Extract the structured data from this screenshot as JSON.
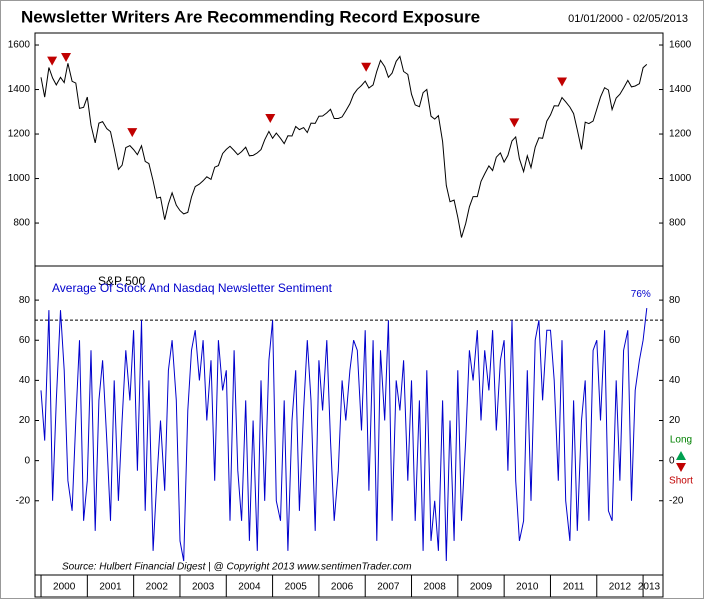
{
  "chart_data": [
    {
      "type": "line",
      "title": "Newsletter Writers Are Recommending Record Exposure",
      "subtitle": "01/01/2000 - 02/05/2013",
      "xlim": [
        1999.87,
        2013.43
      ],
      "ylim": [
        607,
        1654
      ],
      "yticks": [
        800,
        1000,
        1200,
        1400,
        1600
      ],
      "signals": [
        2000.24,
        2000.54,
        2001.97,
        2004.95,
        2007.02,
        2010.22,
        2011.25
      ],
      "signal_color": "#c00000",
      "x": [
        2000,
        2000.08,
        2000.17,
        2000.25,
        2000.33,
        2000.42,
        2000.5,
        2000.58,
        2000.67,
        2000.75,
        2000.83,
        2000.92,
        2001,
        2001.08,
        2001.17,
        2001.25,
        2001.33,
        2001.42,
        2001.5,
        2001.58,
        2001.67,
        2001.75,
        2001.83,
        2001.92,
        2002,
        2002.08,
        2002.17,
        2002.25,
        2002.33,
        2002.42,
        2002.5,
        2002.58,
        2002.67,
        2002.75,
        2002.83,
        2002.92,
        2003,
        2003.08,
        2003.17,
        2003.25,
        2003.33,
        2003.42,
        2003.5,
        2003.58,
        2003.67,
        2003.75,
        2003.83,
        2003.92,
        2004,
        2004.08,
        2004.17,
        2004.25,
        2004.33,
        2004.42,
        2004.5,
        2004.58,
        2004.67,
        2004.75,
        2004.83,
        2004.92,
        2005,
        2005.08,
        2005.17,
        2005.25,
        2005.33,
        2005.42,
        2005.5,
        2005.58,
        2005.67,
        2005.75,
        2005.83,
        2005.92,
        2006,
        2006.08,
        2006.17,
        2006.25,
        2006.33,
        2006.42,
        2006.5,
        2006.58,
        2006.67,
        2006.75,
        2006.83,
        2006.92,
        2007,
        2007.08,
        2007.17,
        2007.25,
        2007.33,
        2007.42,
        2007.5,
        2007.58,
        2007.67,
        2007.75,
        2007.83,
        2007.92,
        2008,
        2008.08,
        2008.17,
        2008.25,
        2008.33,
        2008.42,
        2008.5,
        2008.58,
        2008.67,
        2008.75,
        2008.83,
        2008.92,
        2009,
        2009.08,
        2009.17,
        2009.25,
        2009.33,
        2009.42,
        2009.5,
        2009.58,
        2009.67,
        2009.75,
        2009.83,
        2009.92,
        2010,
        2010.08,
        2010.17,
        2010.25,
        2010.33,
        2010.42,
        2010.5,
        2010.58,
        2010.67,
        2010.75,
        2010.83,
        2010.92,
        2011,
        2011.08,
        2011.17,
        2011.25,
        2011.33,
        2011.42,
        2011.5,
        2011.58,
        2011.67,
        2011.75,
        2011.83,
        2011.92,
        2012,
        2012.08,
        2012.17,
        2012.25,
        2012.33,
        2012.42,
        2012.5,
        2012.58,
        2012.67,
        2012.75,
        2012.83,
        2012.92,
        2013,
        2013.08
      ],
      "series": [
        {
          "name": "S&P 500",
          "color": "#000000",
          "values": [
            1455,
            1366,
            1499,
            1452,
            1421,
            1455,
            1431,
            1518,
            1437,
            1429,
            1315,
            1320,
            1366,
            1240,
            1160,
            1249,
            1256,
            1224,
            1211,
            1134,
            1041,
            1060,
            1139,
            1148,
            1130,
            1107,
            1147,
            1077,
            1067,
            990,
            912,
            916,
            815,
            886,
            936,
            880,
            856,
            841,
            848,
            917,
            964,
            975,
            990,
            1008,
            996,
            1051,
            1058,
            1112,
            1131,
            1145,
            1126,
            1107,
            1121,
            1141,
            1102,
            1104,
            1115,
            1130,
            1174,
            1212,
            1181,
            1204,
            1181,
            1157,
            1192,
            1191,
            1234,
            1220,
            1229,
            1207,
            1249,
            1248,
            1280,
            1281,
            1295,
            1311,
            1270,
            1270,
            1277,
            1304,
            1336,
            1378,
            1401,
            1418,
            1438,
            1407,
            1421,
            1482,
            1531,
            1503,
            1455,
            1474,
            1527,
            1549,
            1481,
            1468,
            1379,
            1331,
            1323,
            1386,
            1400,
            1280,
            1267,
            1283,
            1166,
            969,
            896,
            903,
            826,
            735,
            798,
            873,
            919,
            919,
            987,
            1021,
            1057,
            1036,
            1096,
            1115,
            1074,
            1104,
            1169,
            1187,
            1089,
            1031,
            1102,
            1049,
            1141,
            1183,
            1181,
            1258,
            1286,
            1327,
            1326,
            1364,
            1345,
            1321,
            1292,
            1219,
            1131,
            1253,
            1247,
            1258,
            1312,
            1366,
            1408,
            1398,
            1310,
            1362,
            1379,
            1407,
            1441,
            1412,
            1416,
            1426,
            1498,
            1513
          ]
        }
      ]
    },
    {
      "type": "line",
      "xlim": [
        1999.87,
        2013.43
      ],
      "ylim": [
        -57,
        97
      ],
      "yticks": [
        -20,
        0,
        20,
        40,
        60,
        80
      ],
      "xticks": [
        2000,
        2001,
        2002,
        2003,
        2004,
        2005,
        2006,
        2007,
        2008,
        2009,
        2010,
        2011,
        2012,
        2013
      ],
      "reference_line": 70,
      "signal_legend": [
        "Long",
        "Short"
      ],
      "x": [
        2000,
        2000.08,
        2000.17,
        2000.25,
        2000.33,
        2000.42,
        2000.5,
        2000.58,
        2000.67,
        2000.75,
        2000.83,
        2000.92,
        2001,
        2001.08,
        2001.17,
        2001.25,
        2001.33,
        2001.42,
        2001.5,
        2001.58,
        2001.67,
        2001.75,
        2001.83,
        2001.92,
        2002,
        2002.08,
        2002.17,
        2002.25,
        2002.33,
        2002.42,
        2002.5,
        2002.58,
        2002.67,
        2002.75,
        2002.83,
        2002.92,
        2003,
        2003.08,
        2003.17,
        2003.25,
        2003.33,
        2003.42,
        2003.5,
        2003.58,
        2003.67,
        2003.75,
        2003.83,
        2003.92,
        2004,
        2004.08,
        2004.17,
        2004.25,
        2004.33,
        2004.42,
        2004.5,
        2004.58,
        2004.67,
        2004.75,
        2004.83,
        2004.92,
        2005,
        2005.08,
        2005.17,
        2005.25,
        2005.33,
        2005.42,
        2005.5,
        2005.58,
        2005.67,
        2005.75,
        2005.83,
        2005.92,
        2006,
        2006.08,
        2006.17,
        2006.25,
        2006.33,
        2006.42,
        2006.5,
        2006.58,
        2006.67,
        2006.75,
        2006.83,
        2006.92,
        2007,
        2007.08,
        2007.17,
        2007.25,
        2007.33,
        2007.42,
        2007.5,
        2007.58,
        2007.67,
        2007.75,
        2007.83,
        2007.92,
        2008,
        2008.08,
        2008.17,
        2008.25,
        2008.33,
        2008.42,
        2008.5,
        2008.58,
        2008.67,
        2008.75,
        2008.83,
        2008.92,
        2009,
        2009.08,
        2009.17,
        2009.25,
        2009.33,
        2009.42,
        2009.5,
        2009.58,
        2009.67,
        2009.75,
        2009.83,
        2009.92,
        2010,
        2010.08,
        2010.17,
        2010.25,
        2010.33,
        2010.42,
        2010.5,
        2010.58,
        2010.67,
        2010.75,
        2010.83,
        2010.92,
        2011,
        2011.08,
        2011.17,
        2011.25,
        2011.33,
        2011.42,
        2011.5,
        2011.58,
        2011.67,
        2011.75,
        2011.83,
        2011.92,
        2012,
        2012.08,
        2012.17,
        2012.25,
        2012.33,
        2012.42,
        2012.5,
        2012.58,
        2012.67,
        2012.75,
        2012.83,
        2012.92,
        2013,
        2013.08
      ],
      "series": [
        {
          "name": "Average  Of  Stock  And  Nasdaq  Newsletter  Sentiment",
          "color": "#0000cc",
          "values": [
            35,
            10,
            75,
            -20,
            30,
            75,
            45,
            -10,
            -25,
            20,
            60,
            -30,
            -10,
            55,
            -35,
            30,
            50,
            10,
            -30,
            40,
            -20,
            20,
            55,
            30,
            65,
            -5,
            70,
            -25,
            40,
            -45,
            -10,
            20,
            -15,
            45,
            60,
            30,
            -40,
            -50,
            25,
            55,
            65,
            40,
            60,
            20,
            50,
            -10,
            60,
            35,
            45,
            -30,
            55,
            -5,
            -30,
            30,
            -40,
            20,
            -45,
            40,
            -20,
            50,
            70,
            -20,
            -30,
            30,
            -45,
            20,
            45,
            -25,
            25,
            60,
            30,
            -35,
            50,
            25,
            60,
            10,
            -30,
            -5,
            40,
            20,
            45,
            60,
            55,
            15,
            65,
            -15,
            60,
            -40,
            55,
            20,
            70,
            -30,
            40,
            25,
            50,
            -10,
            40,
            -30,
            30,
            -45,
            45,
            -40,
            -20,
            -45,
            30,
            -50,
            20,
            -40,
            45,
            -30,
            10,
            55,
            40,
            65,
            20,
            55,
            35,
            65,
            15,
            50,
            60,
            -5,
            70,
            -10,
            -40,
            -30,
            45,
            -20,
            60,
            70,
            30,
            65,
            65,
            40,
            -10,
            60,
            -20,
            -40,
            30,
            -35,
            20,
            40,
            -30,
            55,
            60,
            20,
            65,
            -25,
            -30,
            40,
            -10,
            55,
            65,
            -20,
            35,
            50,
            60,
            76
          ],
          "value_labels": {
            "157": "76%"
          }
        }
      ]
    }
  ],
  "footer": "Source:  Hulbert Financial Digest   |   @ Copyright 2013   www.sentimenTrader.com"
}
